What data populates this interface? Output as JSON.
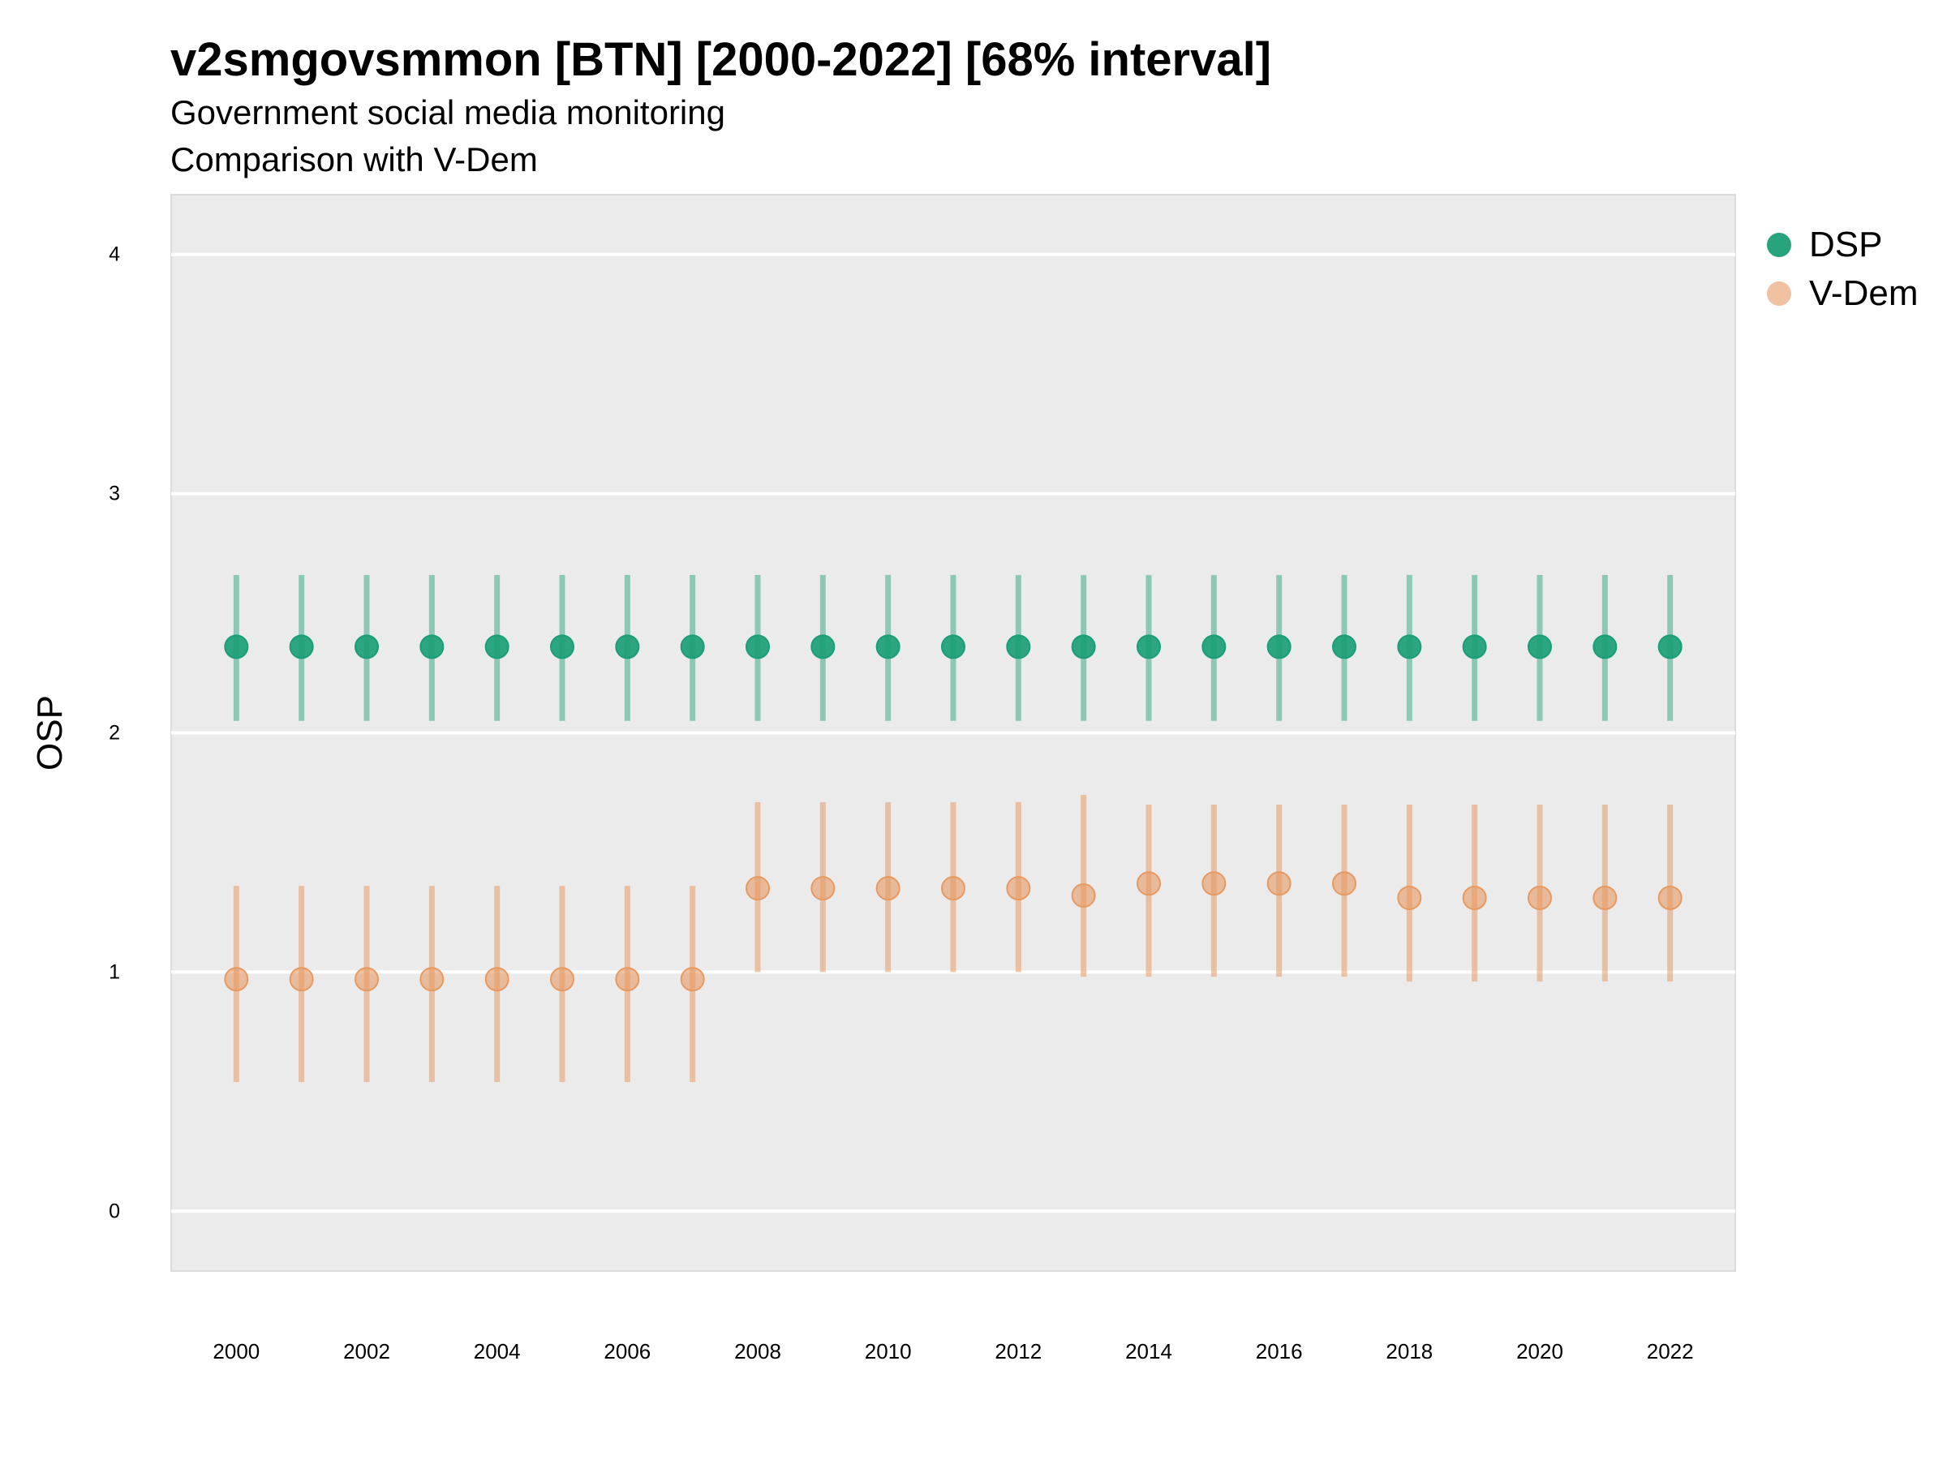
{
  "chart_data": {
    "type": "scatter",
    "title": "v2smgovsmmon [BTN] [2000-2022] [68% interval]",
    "subtitle": [
      "Government social media monitoring",
      "Comparison with V-Dem"
    ],
    "ylabel": "OSP",
    "xlabel": "",
    "ylim": [
      -0.25,
      4.25
    ],
    "yticks": [
      0,
      1,
      2,
      3,
      4
    ],
    "xlim": [
      1999,
      2023
    ],
    "xticks": [
      2000,
      2002,
      2004,
      2006,
      2008,
      2010,
      2012,
      2014,
      2016,
      2018,
      2020,
      2022
    ],
    "grid": true,
    "legend_position": "right",
    "x": [
      2000,
      2001,
      2002,
      2003,
      2004,
      2005,
      2006,
      2007,
      2008,
      2009,
      2010,
      2011,
      2012,
      2013,
      2014,
      2015,
      2016,
      2017,
      2018,
      2019,
      2020,
      2021,
      2022
    ],
    "series": [
      {
        "name": "DSP",
        "color": "#1b9e77",
        "values": [
          2.36,
          2.36,
          2.36,
          2.36,
          2.36,
          2.36,
          2.36,
          2.36,
          2.36,
          2.36,
          2.36,
          2.36,
          2.36,
          2.36,
          2.36,
          2.36,
          2.36,
          2.36,
          2.36,
          2.36,
          2.36,
          2.36,
          2.36
        ],
        "lower": [
          2.05,
          2.05,
          2.05,
          2.05,
          2.05,
          2.05,
          2.05,
          2.05,
          2.05,
          2.05,
          2.05,
          2.05,
          2.05,
          2.05,
          2.05,
          2.05,
          2.05,
          2.05,
          2.05,
          2.05,
          2.05,
          2.05,
          2.05
        ],
        "upper": [
          2.66,
          2.66,
          2.66,
          2.66,
          2.66,
          2.66,
          2.66,
          2.66,
          2.66,
          2.66,
          2.66,
          2.66,
          2.66,
          2.66,
          2.66,
          2.66,
          2.66,
          2.66,
          2.66,
          2.66,
          2.66,
          2.66,
          2.66
        ]
      },
      {
        "name": "V-Dem",
        "color": "#e69a62",
        "values": [
          0.97,
          0.97,
          0.97,
          0.97,
          0.97,
          0.97,
          0.97,
          0.97,
          1.35,
          1.35,
          1.35,
          1.35,
          1.35,
          1.32,
          1.37,
          1.37,
          1.37,
          1.37,
          1.31,
          1.31,
          1.31,
          1.31,
          1.31
        ],
        "lower": [
          0.54,
          0.54,
          0.54,
          0.54,
          0.54,
          0.54,
          0.54,
          0.54,
          1.0,
          1.0,
          1.0,
          1.0,
          1.0,
          0.98,
          0.98,
          0.98,
          0.98,
          0.98,
          0.96,
          0.96,
          0.96,
          0.96,
          0.96
        ],
        "upper": [
          1.36,
          1.36,
          1.36,
          1.36,
          1.36,
          1.36,
          1.36,
          1.36,
          1.71,
          1.71,
          1.71,
          1.71,
          1.71,
          1.74,
          1.7,
          1.7,
          1.7,
          1.7,
          1.7,
          1.7,
          1.7,
          1.7,
          1.7
        ]
      }
    ]
  }
}
